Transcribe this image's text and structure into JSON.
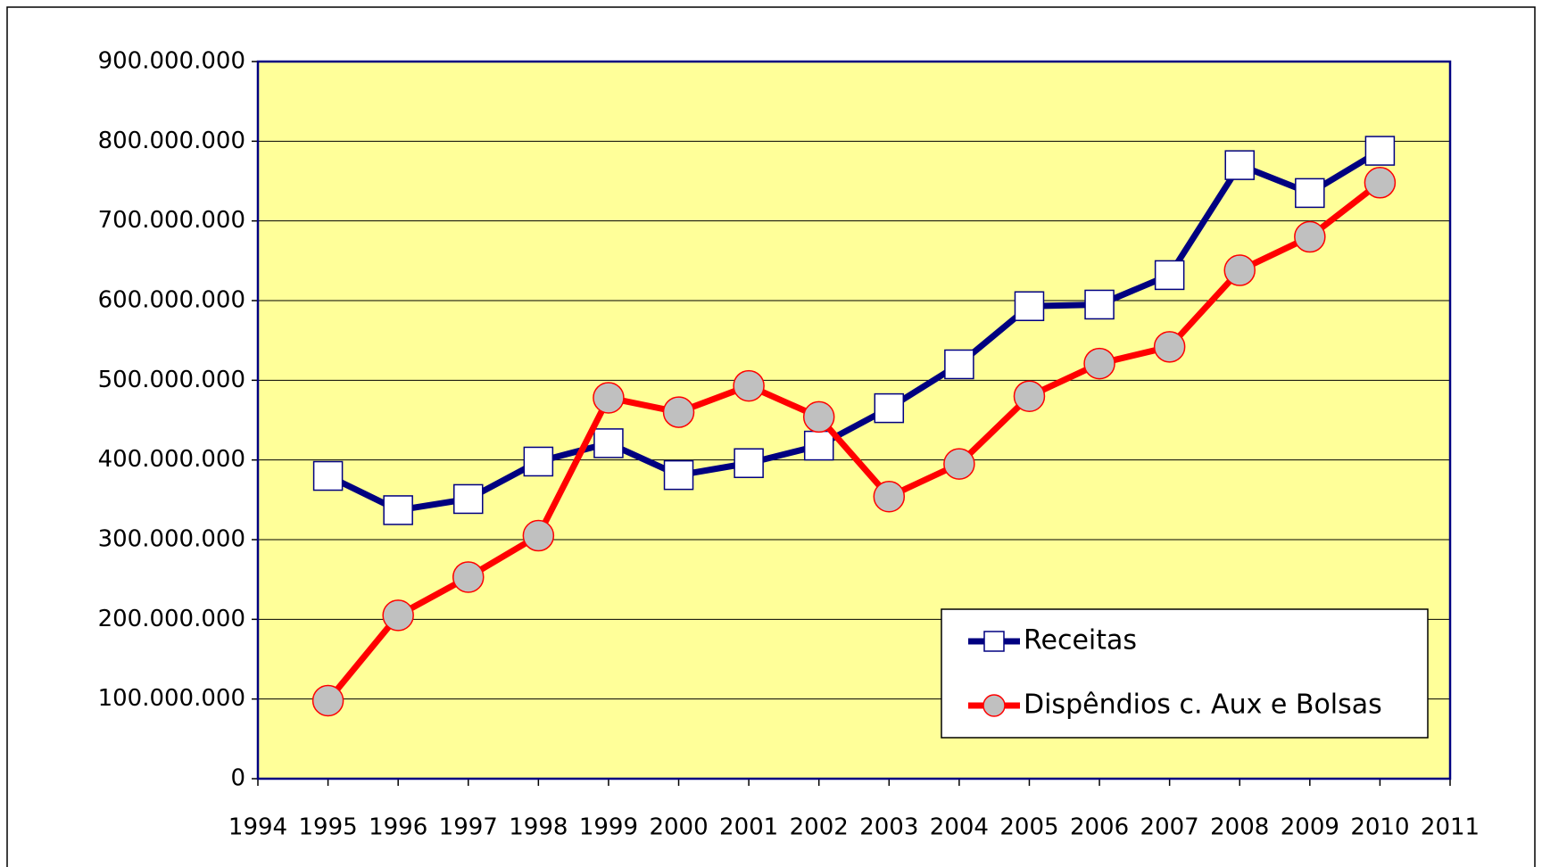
{
  "chart_data": {
    "type": "line",
    "x": [
      1995,
      1996,
      1997,
      1998,
      1999,
      2000,
      2001,
      2002,
      2003,
      2004,
      2005,
      2006,
      2007,
      2008,
      2009,
      2010
    ],
    "series": [
      {
        "name": "Receitas",
        "color": "#000080",
        "marker": "square",
        "values": [
          380000000,
          337000000,
          351000000,
          398000000,
          421000000,
          381000000,
          396000000,
          418000000,
          465000000,
          520000000,
          593000000,
          595000000,
          632000000,
          770000000,
          735000000,
          788000000
        ]
      },
      {
        "name": "Dispêndios c. Aux e Bolsas",
        "color": "#ff0000",
        "marker": "circle",
        "values": [
          98000000,
          205000000,
          253000000,
          305000000,
          478000000,
          460000000,
          493000000,
          454000000,
          354000000,
          395000000,
          480000000,
          521000000,
          542000000,
          638000000,
          680000000,
          748000000
        ]
      }
    ],
    "xlim": [
      1994,
      2011
    ],
    "xticks": [
      1994,
      1995,
      1996,
      1997,
      1998,
      1999,
      2000,
      2001,
      2002,
      2003,
      2004,
      2005,
      2006,
      2007,
      2008,
      2009,
      2010,
      2011
    ],
    "ylim": [
      0,
      900000000
    ],
    "yticks": [
      0,
      {
        "value": 100000000,
        "label": "100.000.000"
      },
      {
        "value": 200000000,
        "label": "200.000.000"
      },
      {
        "value": 300000000,
        "label": "300.000.000"
      },
      {
        "value": 400000000,
        "label": "400.000.000"
      },
      {
        "value": 500000000,
        "label": "500.000.000"
      },
      {
        "value": 600000000,
        "label": "600.000.000"
      },
      {
        "value": 700000000,
        "label": "700.000.000"
      },
      {
        "value": 800000000,
        "label": "800.000.000"
      },
      {
        "value": 900000000,
        "label": "900.000.000"
      }
    ],
    "grid": true,
    "legend": "lower right",
    "plot_background": "#ffff99"
  }
}
